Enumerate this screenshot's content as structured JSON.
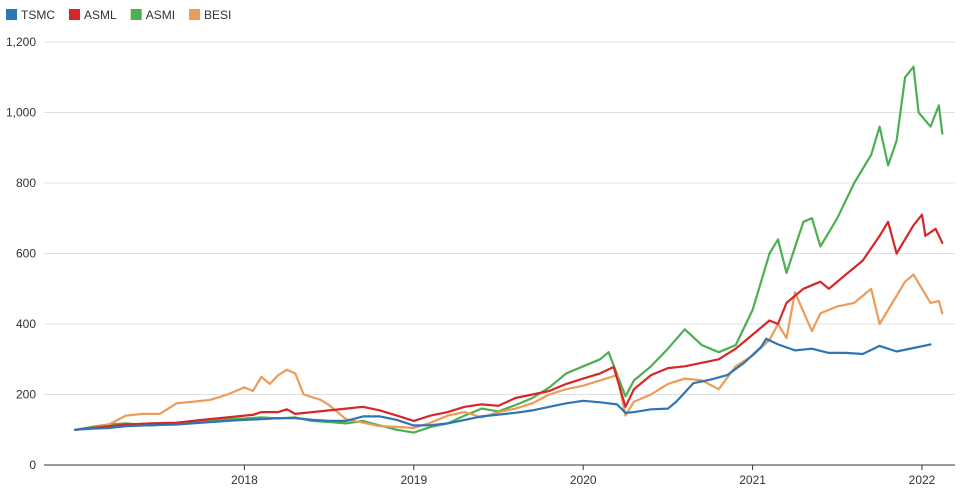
{
  "chart_data": {
    "type": "line",
    "title": "",
    "xlabel": "",
    "ylabel": "",
    "ylim": [
      0,
      1200
    ],
    "yticks": [
      0,
      200,
      400,
      600,
      800,
      1000,
      1200
    ],
    "ytick_labels": [
      "0",
      "200",
      "400",
      "600",
      "800",
      "1,000",
      "1,200"
    ],
    "xlim": [
      2017.0,
      2022.12
    ],
    "xticks": [
      2018,
      2019,
      2020,
      2021,
      2022
    ],
    "xtick_labels": [
      "2018",
      "2019",
      "2020",
      "2021",
      "2022"
    ],
    "grid": "horizontal",
    "legend_position": "top-left",
    "series": [
      {
        "name": "TSMC",
        "color": "#2e75b6",
        "points": [
          [
            2017.0,
            100
          ],
          [
            2017.1,
            103
          ],
          [
            2017.2,
            105
          ],
          [
            2017.3,
            110
          ],
          [
            2017.45,
            113
          ],
          [
            2017.6,
            115
          ],
          [
            2017.75,
            120
          ],
          [
            2017.9,
            125
          ],
          [
            2018.0,
            128
          ],
          [
            2018.1,
            130
          ],
          [
            2018.2,
            133
          ],
          [
            2018.3,
            133
          ],
          [
            2018.4,
            128
          ],
          [
            2018.5,
            125
          ],
          [
            2018.6,
            125
          ],
          [
            2018.7,
            138
          ],
          [
            2018.8,
            138
          ],
          [
            2018.9,
            128
          ],
          [
            2019.0,
            112
          ],
          [
            2019.1,
            113
          ],
          [
            2019.2,
            118
          ],
          [
            2019.3,
            128
          ],
          [
            2019.4,
            138
          ],
          [
            2019.5,
            143
          ],
          [
            2019.6,
            148
          ],
          [
            2019.7,
            155
          ],
          [
            2019.8,
            165
          ],
          [
            2019.9,
            175
          ],
          [
            2020.0,
            182
          ],
          [
            2020.1,
            178
          ],
          [
            2020.2,
            172
          ],
          [
            2020.25,
            148
          ],
          [
            2020.3,
            150
          ],
          [
            2020.4,
            158
          ],
          [
            2020.5,
            160
          ],
          [
            2020.55,
            180
          ],
          [
            2020.65,
            232
          ],
          [
            2020.75,
            242
          ],
          [
            2020.85,
            255
          ],
          [
            2020.95,
            290
          ],
          [
            2021.05,
            335
          ],
          [
            2021.08,
            358
          ],
          [
            2021.15,
            342
          ],
          [
            2021.25,
            325
          ],
          [
            2021.35,
            330
          ],
          [
            2021.45,
            318
          ],
          [
            2021.55,
            318
          ],
          [
            2021.65,
            315
          ],
          [
            2021.75,
            338
          ],
          [
            2021.85,
            322
          ],
          [
            2021.95,
            332
          ],
          [
            2022.05,
            342
          ]
        ]
      },
      {
        "name": "ASML",
        "color": "#d62728",
        "points": [
          [
            2017.0,
            100
          ],
          [
            2017.1,
            105
          ],
          [
            2017.2,
            110
          ],
          [
            2017.3,
            115
          ],
          [
            2017.45,
            118
          ],
          [
            2017.6,
            120
          ],
          [
            2017.75,
            128
          ],
          [
            2017.9,
            135
          ],
          [
            2018.0,
            140
          ],
          [
            2018.05,
            142
          ],
          [
            2018.1,
            150
          ],
          [
            2018.2,
            150
          ],
          [
            2018.25,
            158
          ],
          [
            2018.3,
            145
          ],
          [
            2018.4,
            150
          ],
          [
            2018.5,
            155
          ],
          [
            2018.6,
            160
          ],
          [
            2018.7,
            165
          ],
          [
            2018.8,
            155
          ],
          [
            2018.9,
            140
          ],
          [
            2019.0,
            125
          ],
          [
            2019.1,
            140
          ],
          [
            2019.2,
            150
          ],
          [
            2019.3,
            165
          ],
          [
            2019.4,
            172
          ],
          [
            2019.5,
            168
          ],
          [
            2019.6,
            190
          ],
          [
            2019.7,
            200
          ],
          [
            2019.8,
            210
          ],
          [
            2019.9,
            230
          ],
          [
            2020.0,
            245
          ],
          [
            2020.1,
            260
          ],
          [
            2020.18,
            278
          ],
          [
            2020.25,
            165
          ],
          [
            2020.3,
            215
          ],
          [
            2020.4,
            255
          ],
          [
            2020.5,
            275
          ],
          [
            2020.6,
            280
          ],
          [
            2020.7,
            290
          ],
          [
            2020.8,
            300
          ],
          [
            2020.9,
            330
          ],
          [
            2021.0,
            370
          ],
          [
            2021.1,
            410
          ],
          [
            2021.15,
            400
          ],
          [
            2021.2,
            460
          ],
          [
            2021.3,
            500
          ],
          [
            2021.4,
            520
          ],
          [
            2021.45,
            500
          ],
          [
            2021.55,
            540
          ],
          [
            2021.65,
            580
          ],
          [
            2021.75,
            650
          ],
          [
            2021.8,
            690
          ],
          [
            2021.85,
            600
          ],
          [
            2021.95,
            680
          ],
          [
            2022.0,
            710
          ],
          [
            2022.02,
            650
          ],
          [
            2022.08,
            670
          ],
          [
            2022.12,
            630
          ]
        ]
      },
      {
        "name": "ASMI",
        "color": "#4caf50",
        "points": [
          [
            2017.0,
            100
          ],
          [
            2017.1,
            108
          ],
          [
            2017.2,
            115
          ],
          [
            2017.3,
            118
          ],
          [
            2017.45,
            112
          ],
          [
            2017.6,
            118
          ],
          [
            2017.75,
            122
          ],
          [
            2017.9,
            130
          ],
          [
            2018.0,
            132
          ],
          [
            2018.1,
            135
          ],
          [
            2018.2,
            132
          ],
          [
            2018.3,
            135
          ],
          [
            2018.4,
            125
          ],
          [
            2018.5,
            122
          ],
          [
            2018.6,
            118
          ],
          [
            2018.7,
            125
          ],
          [
            2018.8,
            112
          ],
          [
            2018.9,
            100
          ],
          [
            2019.0,
            92
          ],
          [
            2019.1,
            108
          ],
          [
            2019.2,
            118
          ],
          [
            2019.3,
            140
          ],
          [
            2019.4,
            160
          ],
          [
            2019.5,
            152
          ],
          [
            2019.6,
            170
          ],
          [
            2019.7,
            190
          ],
          [
            2019.8,
            220
          ],
          [
            2019.9,
            260
          ],
          [
            2020.0,
            280
          ],
          [
            2020.1,
            300
          ],
          [
            2020.15,
            320
          ],
          [
            2020.25,
            195
          ],
          [
            2020.3,
            240
          ],
          [
            2020.4,
            280
          ],
          [
            2020.5,
            330
          ],
          [
            2020.6,
            385
          ],
          [
            2020.7,
            340
          ],
          [
            2020.8,
            320
          ],
          [
            2020.9,
            340
          ],
          [
            2021.0,
            440
          ],
          [
            2021.05,
            520
          ],
          [
            2021.1,
            600
          ],
          [
            2021.15,
            640
          ],
          [
            2021.2,
            545
          ],
          [
            2021.3,
            690
          ],
          [
            2021.35,
            700
          ],
          [
            2021.4,
            620
          ],
          [
            2021.5,
            700
          ],
          [
            2021.6,
            800
          ],
          [
            2021.7,
            880
          ],
          [
            2021.75,
            960
          ],
          [
            2021.8,
            850
          ],
          [
            2021.85,
            920
          ],
          [
            2021.9,
            1100
          ],
          [
            2021.95,
            1130
          ],
          [
            2021.98,
            1000
          ],
          [
            2022.05,
            960
          ],
          [
            2022.1,
            1020
          ],
          [
            2022.12,
            940
          ]
        ]
      },
      {
        "name": "BESI",
        "color": "#ed9b59",
        "points": [
          [
            2017.0,
            100
          ],
          [
            2017.1,
            105
          ],
          [
            2017.2,
            115
          ],
          [
            2017.3,
            140
          ],
          [
            2017.4,
            145
          ],
          [
            2017.5,
            145
          ],
          [
            2017.6,
            175
          ],
          [
            2017.7,
            180
          ],
          [
            2017.8,
            185
          ],
          [
            2017.9,
            200
          ],
          [
            2018.0,
            220
          ],
          [
            2018.05,
            210
          ],
          [
            2018.1,
            250
          ],
          [
            2018.15,
            230
          ],
          [
            2018.2,
            255
          ],
          [
            2018.25,
            270
          ],
          [
            2018.3,
            260
          ],
          [
            2018.35,
            200
          ],
          [
            2018.45,
            185
          ],
          [
            2018.5,
            170
          ],
          [
            2018.6,
            130
          ],
          [
            2018.7,
            120
          ],
          [
            2018.8,
            110
          ],
          [
            2018.9,
            108
          ],
          [
            2019.0,
            105
          ],
          [
            2019.1,
            120
          ],
          [
            2019.2,
            140
          ],
          [
            2019.3,
            150
          ],
          [
            2019.4,
            135
          ],
          [
            2019.5,
            150
          ],
          [
            2019.6,
            160
          ],
          [
            2019.7,
            175
          ],
          [
            2019.8,
            200
          ],
          [
            2019.9,
            215
          ],
          [
            2020.0,
            225
          ],
          [
            2020.1,
            240
          ],
          [
            2020.2,
            255
          ],
          [
            2020.25,
            140
          ],
          [
            2020.3,
            180
          ],
          [
            2020.4,
            200
          ],
          [
            2020.5,
            230
          ],
          [
            2020.6,
            245
          ],
          [
            2020.7,
            240
          ],
          [
            2020.8,
            215
          ],
          [
            2020.9,
            280
          ],
          [
            2021.0,
            310
          ],
          [
            2021.1,
            355
          ],
          [
            2021.15,
            400
          ],
          [
            2021.2,
            360
          ],
          [
            2021.25,
            490
          ],
          [
            2021.35,
            380
          ],
          [
            2021.4,
            430
          ],
          [
            2021.5,
            450
          ],
          [
            2021.6,
            460
          ],
          [
            2021.7,
            500
          ],
          [
            2021.75,
            400
          ],
          [
            2021.85,
            480
          ],
          [
            2021.9,
            520
          ],
          [
            2021.95,
            540
          ],
          [
            2022.0,
            500
          ],
          [
            2022.05,
            460
          ],
          [
            2022.1,
            465
          ],
          [
            2022.12,
            430
          ]
        ]
      }
    ]
  }
}
